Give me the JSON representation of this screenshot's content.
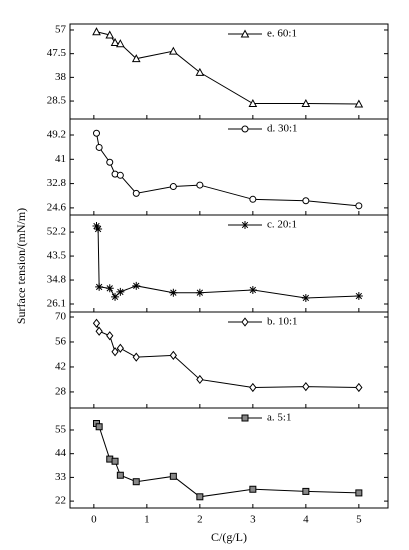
{
  "chart_data": [
    {
      "type": "line",
      "x": [
        0.05,
        0.3,
        0.4,
        0.5,
        0.8,
        1.5,
        2,
        3,
        4,
        5
      ],
      "series": [
        {
          "name": "e. 60:1",
          "color": "#000000",
          "marker": "triangle",
          "values": [
            56.3,
            55,
            52,
            51.5,
            45.5,
            48.5,
            40,
            27.5,
            27.5,
            27.3
          ]
        }
      ],
      "ylim": [
        21.3,
        59.4
      ],
      "yticks": [
        28.5,
        38.0,
        47.5,
        57.0
      ]
    },
    {
      "type": "line",
      "x": [
        0.05,
        0.1,
        0.3,
        0.4,
        0.5,
        0.8,
        1.5,
        2,
        3,
        4,
        5
      ],
      "series": [
        {
          "name": "d. 30:1",
          "color": "#000000",
          "marker": "circle",
          "values": [
            49.8,
            45,
            40,
            36,
            35.6,
            29.5,
            31.8,
            32.3,
            27.5,
            27,
            25.3
          ]
        }
      ],
      "ylim": [
        22.2,
        54.6
      ],
      "yticks": [
        24.6,
        32.8,
        41.0,
        49.2
      ]
    },
    {
      "type": "line",
      "x": [
        0.05,
        0.08,
        0.1,
        0.3,
        0.4,
        0.5,
        0.8,
        1.5,
        2,
        3,
        4,
        5
      ],
      "series": [
        {
          "name": "c. 20:1",
          "color": "#000000",
          "marker": "star",
          "values": [
            54.4,
            53.3,
            32.3,
            31.8,
            28.7,
            30.5,
            32.7,
            30.2,
            30.2,
            31.2,
            28.3,
            29
          ]
        }
      ],
      "ylim": [
        23.2,
        58.4
      ],
      "yticks": [
        26.1,
        34.8,
        43.5,
        52.2
      ],
      "ylabel": "Surface tension/(mN/m)"
    },
    {
      "type": "line",
      "x": [
        0.05,
        0.1,
        0.3,
        0.4,
        0.5,
        0.8,
        1.5,
        2,
        3,
        4,
        5
      ],
      "series": [
        {
          "name": "b. 10:1",
          "color": "#000000",
          "marker": "diamond",
          "values": [
            66.5,
            62,
            59.5,
            50.5,
            52.5,
            47.5,
            48.5,
            35,
            30.5,
            31,
            30.5
          ]
        }
      ],
      "ylim": [
        19,
        72.8
      ],
      "yticks": [
        28,
        42,
        56,
        70
      ]
    },
    {
      "type": "line",
      "x": [
        0.05,
        0.1,
        0.3,
        0.4,
        0.5,
        0.8,
        1.5,
        2,
        3,
        4,
        5
      ],
      "series": [
        {
          "name": "a. 5:1",
          "color": "#000000",
          "marker": "square",
          "values": [
            58,
            56.5,
            41.5,
            40.5,
            34,
            31,
            33.5,
            24,
            27.5,
            26.5,
            25.8
          ]
        }
      ],
      "ylim": [
        18.8,
        65.2
      ],
      "yticks": [
        22,
        33,
        44,
        55
      ],
      "xlim": [
        -0.45,
        5.55
      ],
      "xticks": [
        0,
        1,
        2,
        3,
        4,
        5
      ],
      "xlabel": "C/(g/L)"
    }
  ]
}
